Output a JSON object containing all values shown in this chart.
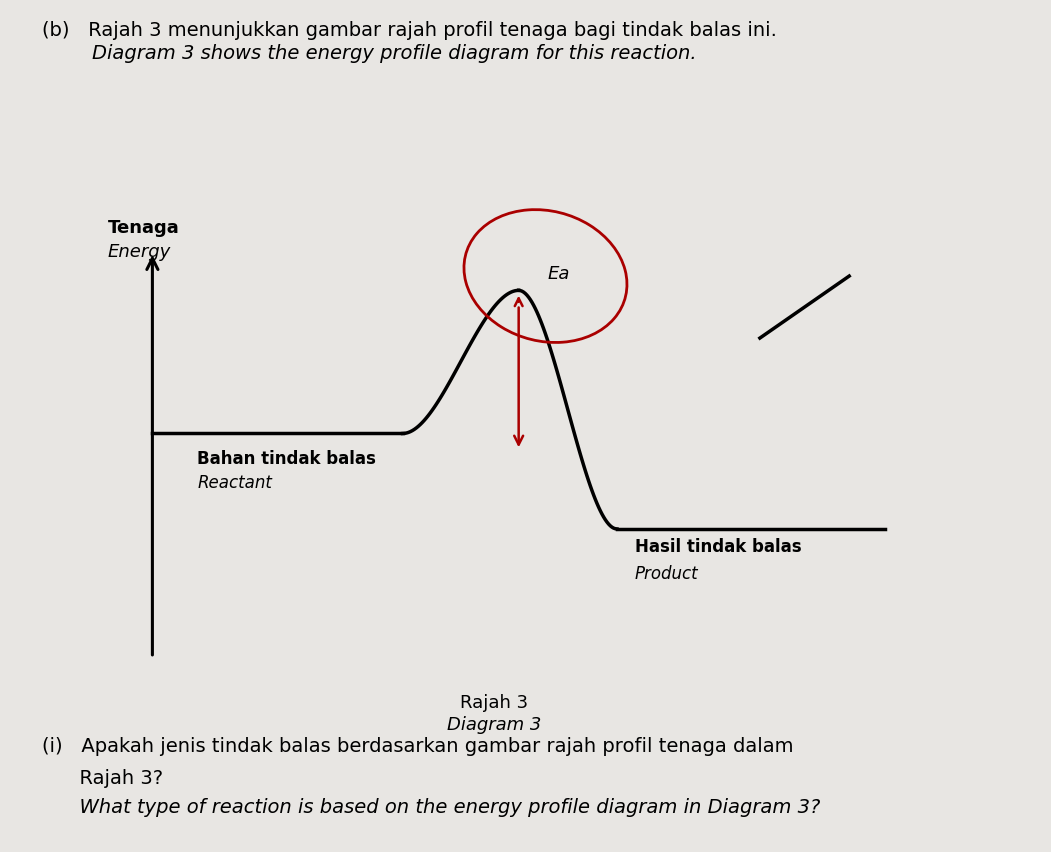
{
  "background_color": "#e8e6e3",
  "title_text1": "(b)   Rajah 3 menunjukkan gambar rajah profil tenaga bagi tindak balas ini.",
  "title_text2": "        Diagram 3 shows the energy profile diagram for this reaction.",
  "ylabel_text1": "Tenaga",
  "ylabel_text2": "Energy",
  "reactant_label1": "Bahan tindak balas",
  "reactant_label2": "Reactant",
  "product_label1": "Hasil tindak balas",
  "product_label2": "Product",
  "ea_label": "Ea",
  "diagram_label1": "Rajah 3",
  "diagram_label2": "Diagram 3",
  "question_text1": "(i)   Apakah jenis tindak balas berdasarkan gambar rajah profil tenaga dalam",
  "question_text2": "      Rajah 3?",
  "question_text3": "      What type of reaction is based on the energy profile diagram in Diagram 3?",
  "line_color": "#000000",
  "arrow_color": "#aa0000",
  "ellipse_color": "#aa0000"
}
